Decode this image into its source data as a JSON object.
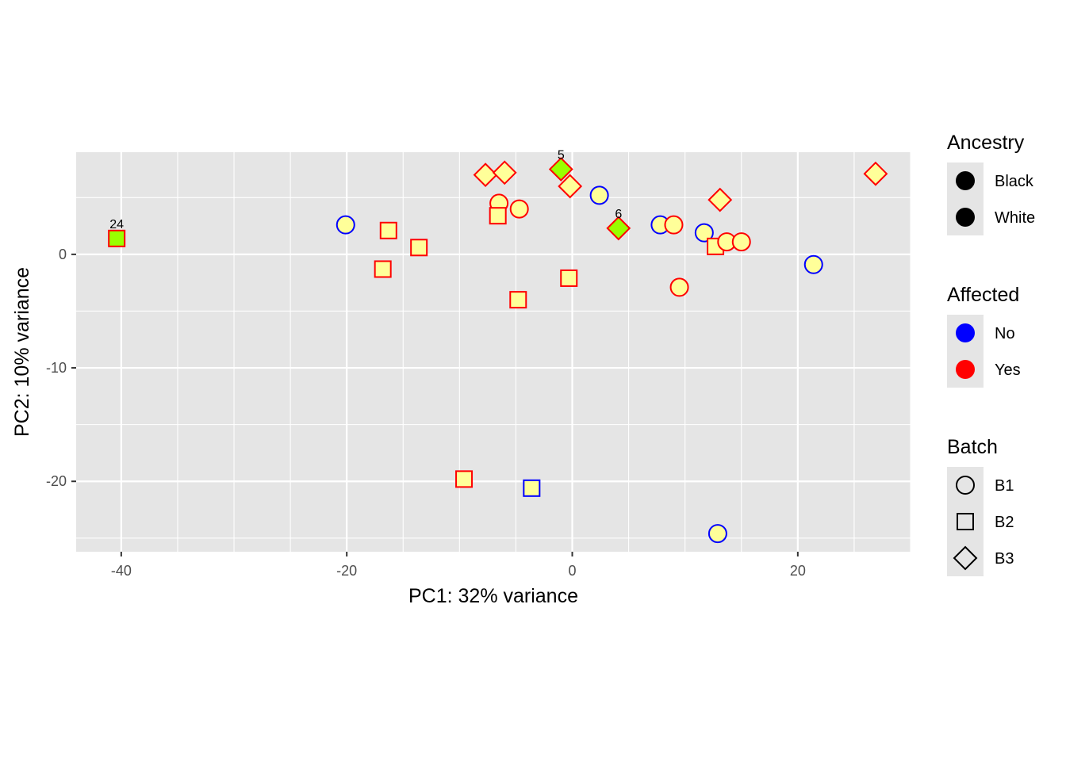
{
  "chart_data": {
    "type": "scatter",
    "title": "",
    "xlabel": "PC1: 32% variance",
    "ylabel": "PC2: 10% variance",
    "xlim": [
      -44,
      30
    ],
    "ylim": [
      -26.2,
      9
    ],
    "xticks": [
      -40,
      -20,
      0,
      20
    ],
    "xtick_labels": [
      "-40",
      "-20",
      "0",
      "20"
    ],
    "yticks": [
      0,
      -10,
      -20
    ],
    "ytick_labels": [
      "0",
      "-10",
      "-20"
    ],
    "grid": true,
    "legend_position": "right",
    "legends": [
      {
        "title": "Ancestry",
        "entries": [
          {
            "label": "Black",
            "fill": "#000000",
            "shape": "circle"
          },
          {
            "label": "White",
            "fill": "#000000",
            "shape": "circle"
          }
        ]
      },
      {
        "title": "Affected",
        "entries": [
          {
            "label": "No",
            "fill": "#0000ff",
            "shape": "circle"
          },
          {
            "label": "Yes",
            "fill": "#ff0000",
            "shape": "circle"
          }
        ]
      },
      {
        "title": "Batch",
        "entries": [
          {
            "label": "B1",
            "shape": "circle"
          },
          {
            "label": "B2",
            "shape": "square"
          },
          {
            "label": "B3",
            "shape": "diamond"
          }
        ]
      }
    ],
    "points": [
      {
        "x": -40.4,
        "y": 1.4,
        "batch": "B2",
        "affected": "Yes",
        "fill": "#99ff00",
        "label": "24"
      },
      {
        "x": -20.1,
        "y": 2.6,
        "batch": "B1",
        "affected": "No",
        "fill": "#ffff99",
        "label": ""
      },
      {
        "x": -16.3,
        "y": 2.1,
        "batch": "B2",
        "affected": "Yes",
        "fill": "#ffff99",
        "label": ""
      },
      {
        "x": -16.8,
        "y": -1.3,
        "batch": "B2",
        "affected": "Yes",
        "fill": "#ffff99",
        "label": ""
      },
      {
        "x": -13.6,
        "y": 0.6,
        "batch": "B2",
        "affected": "Yes",
        "fill": "#ffff99",
        "label": ""
      },
      {
        "x": -7.7,
        "y": 7.0,
        "batch": "B3",
        "affected": "Yes",
        "fill": "#ffff99",
        "label": ""
      },
      {
        "x": -6.0,
        "y": 7.2,
        "batch": "B3",
        "affected": "Yes",
        "fill": "#ffff99",
        "label": ""
      },
      {
        "x": -6.5,
        "y": 4.5,
        "batch": "B1",
        "affected": "Yes",
        "fill": "#ffff99",
        "label": ""
      },
      {
        "x": -4.7,
        "y": 4.0,
        "batch": "B1",
        "affected": "Yes",
        "fill": "#ffff99",
        "label": ""
      },
      {
        "x": -6.6,
        "y": 3.4,
        "batch": "B2",
        "affected": "Yes",
        "fill": "#ffff99",
        "label": ""
      },
      {
        "x": -4.8,
        "y": -4.0,
        "batch": "B2",
        "affected": "Yes",
        "fill": "#ffff99",
        "label": ""
      },
      {
        "x": -0.3,
        "y": -2.1,
        "batch": "B2",
        "affected": "Yes",
        "fill": "#ffff99",
        "label": ""
      },
      {
        "x": -1.0,
        "y": 7.5,
        "batch": "B3",
        "affected": "Yes",
        "fill": "#99ff00",
        "label": "5"
      },
      {
        "x": -0.2,
        "y": 6.0,
        "batch": "B3",
        "affected": "Yes",
        "fill": "#ffff99",
        "label": ""
      },
      {
        "x": 2.4,
        "y": 5.2,
        "batch": "B1",
        "affected": "No",
        "fill": "#ffff99",
        "label": ""
      },
      {
        "x": 4.1,
        "y": 2.3,
        "batch": "B3",
        "affected": "Yes",
        "fill": "#99ff00",
        "label": "6"
      },
      {
        "x": 7.8,
        "y": 2.6,
        "batch": "B1",
        "affected": "No",
        "fill": "#ffff99",
        "label": ""
      },
      {
        "x": 9.0,
        "y": 2.6,
        "batch": "B1",
        "affected": "Yes",
        "fill": "#ffff99",
        "label": ""
      },
      {
        "x": 11.7,
        "y": 1.9,
        "batch": "B1",
        "affected": "No",
        "fill": "#ffff99",
        "label": ""
      },
      {
        "x": 12.7,
        "y": 0.7,
        "batch": "B2",
        "affected": "Yes",
        "fill": "#ffff99",
        "label": ""
      },
      {
        "x": 13.7,
        "y": 1.1,
        "batch": "B1",
        "affected": "Yes",
        "fill": "#ffff99",
        "label": ""
      },
      {
        "x": 15.0,
        "y": 1.1,
        "batch": "B1",
        "affected": "Yes",
        "fill": "#ffff99",
        "label": ""
      },
      {
        "x": 13.1,
        "y": 4.8,
        "batch": "B3",
        "affected": "Yes",
        "fill": "#ffff99",
        "label": ""
      },
      {
        "x": 9.5,
        "y": -2.9,
        "batch": "B1",
        "affected": "Yes",
        "fill": "#ffff99",
        "label": ""
      },
      {
        "x": 21.4,
        "y": -0.9,
        "batch": "B1",
        "affected": "No",
        "fill": "#ffff99",
        "label": ""
      },
      {
        "x": 26.9,
        "y": 7.1,
        "batch": "B3",
        "affected": "Yes",
        "fill": "#ffff99",
        "label": ""
      },
      {
        "x": -9.6,
        "y": -19.8,
        "batch": "B2",
        "affected": "Yes",
        "fill": "#ffff99",
        "label": ""
      },
      {
        "x": -3.6,
        "y": -20.6,
        "batch": "B2",
        "affected": "No",
        "fill": "#ffff99",
        "label": ""
      },
      {
        "x": 12.9,
        "y": -24.6,
        "batch": "B1",
        "affected": "No",
        "fill": "#ffff99",
        "label": ""
      }
    ]
  },
  "colors": {
    "panel_background": "#e5e5e5",
    "grid": "#ffffff",
    "affected_no": "#0000ff",
    "affected_yes": "#ff0000",
    "legend_key_background": "#e5e5e5"
  }
}
